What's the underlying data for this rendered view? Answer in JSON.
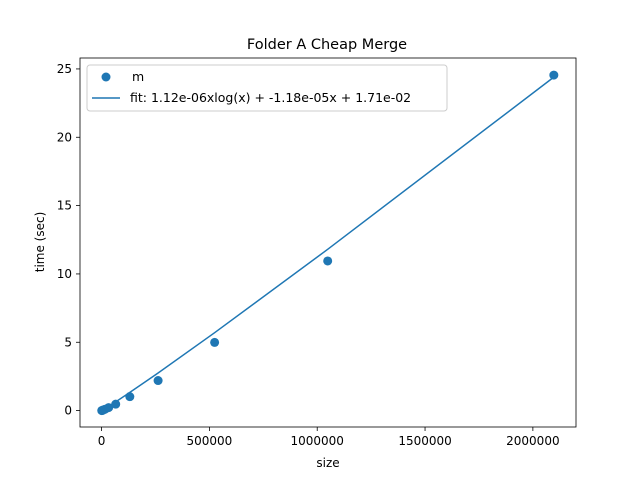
{
  "chart_data": {
    "type": "scatter",
    "title": "Folder A Cheap Merge",
    "xlabel": "size",
    "ylabel": "time (sec)",
    "xlim": [
      -100000,
      2200000
    ],
    "ylim": [
      -1.2,
      25.8
    ],
    "xticks": [
      0,
      500000,
      1000000,
      1500000,
      2000000
    ],
    "xtick_labels": [
      "0",
      "500000",
      "1000000",
      "1500000",
      "2000000"
    ],
    "yticks": [
      0,
      5,
      10,
      15,
      20,
      25
    ],
    "ytick_labels": [
      "0",
      "5",
      "10",
      "15",
      "20",
      "25"
    ],
    "grid": false,
    "legend_position": "top-left",
    "color": "#1f77b4",
    "series": [
      {
        "name": "m",
        "kind": "scatter",
        "x": [
          1024,
          2048,
          4096,
          8192,
          16384,
          32768,
          65536,
          131072,
          262144,
          524288,
          1048576,
          2097152
        ],
        "y": [
          0.0,
          0.01,
          0.02,
          0.05,
          0.1,
          0.22,
          0.47,
          1.02,
          2.2,
          4.99,
          10.95,
          24.55
        ]
      },
      {
        "name": "fit: 1.12e-06xlog(x) + -1.18e-05x + 1.71e-02",
        "kind": "line",
        "x": [
          1024,
          2048,
          4096,
          8192,
          16384,
          32768,
          65536,
          131072,
          262144,
          524288,
          1048576,
          2097152
        ],
        "y": [
          0.02,
          0.027,
          0.042,
          0.078,
          0.152,
          0.31,
          0.64,
          1.33,
          2.75,
          5.7,
          11.8,
          24.4
        ]
      }
    ]
  }
}
